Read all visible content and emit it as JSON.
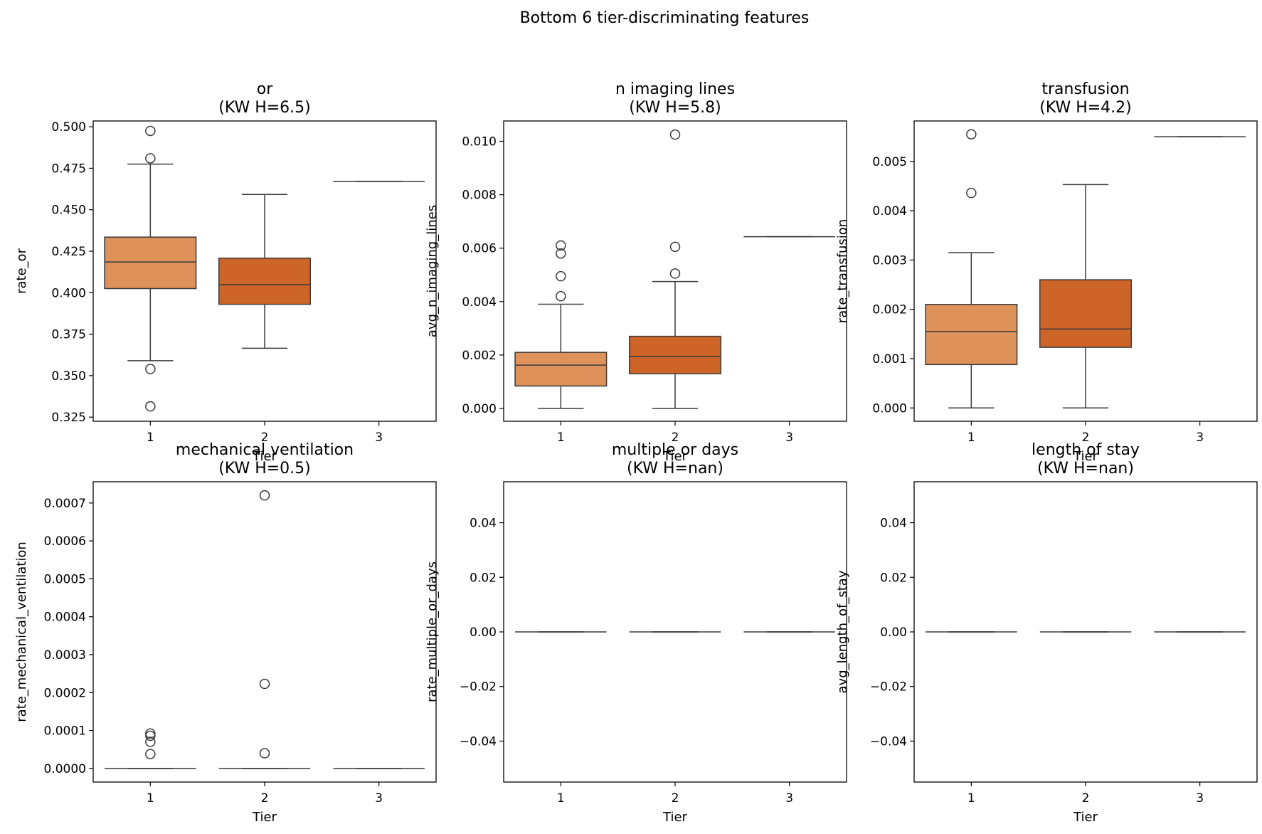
{
  "figure": {
    "suptitle": "Bottom 6 tier-discriminating features"
  },
  "chart_data": [
    {
      "type": "box",
      "title_line1": "or",
      "title_line2": "(KW H=6.5)",
      "xlabel": "Tier",
      "ylabel": "rate_or",
      "categories": [
        "1",
        "2",
        "3"
      ],
      "ylim": [
        0.3225,
        0.5035
      ],
      "yticks": [
        0.325,
        0.35,
        0.375,
        0.4,
        0.425,
        0.45,
        0.475,
        0.5
      ],
      "ytick_labels": [
        "0.325",
        "0.350",
        "0.375",
        "0.400",
        "0.425",
        "0.450",
        "0.475",
        "0.500"
      ],
      "boxes": [
        {
          "tier": "1",
          "q1": 0.4025,
          "median": 0.4185,
          "q3": 0.4335,
          "whislo": 0.359,
          "whishi": 0.4775,
          "fliers": [
            0.4975,
            0.481,
            0.354,
            0.3315
          ],
          "color": "#df915a"
        },
        {
          "tier": "2",
          "q1": 0.393,
          "median": 0.4048,
          "q3": 0.4208,
          "whislo": 0.3665,
          "whishi": 0.4592,
          "fliers": [],
          "color": "#cd6428"
        },
        {
          "tier": "3",
          "q1": 0.467,
          "median": 0.467,
          "q3": 0.467,
          "whislo": 0.467,
          "whishi": 0.467,
          "fliers": [],
          "color": "#cd6428"
        }
      ]
    },
    {
      "type": "box",
      "title_line1": "n imaging lines",
      "title_line2": "(KW H=5.8)",
      "xlabel": "Tier",
      "ylabel": "avg_n_imaging_lines",
      "categories": [
        "1",
        "2",
        "3"
      ],
      "ylim": [
        -0.00048,
        0.01076
      ],
      "yticks": [
        0,
        0.002,
        0.004,
        0.006,
        0.008,
        0.01
      ],
      "ytick_labels": [
        "0.000",
        "0.002",
        "0.004",
        "0.006",
        "0.008",
        "0.010"
      ],
      "boxes": [
        {
          "tier": "1",
          "q1": 0.00084,
          "median": 0.00162,
          "q3": 0.0021,
          "whislo": 0.0,
          "whishi": 0.0039,
          "fliers": [
            0.0061,
            0.0058,
            0.00495,
            0.0042
          ],
          "color": "#df915a"
        },
        {
          "tier": "2",
          "q1": 0.0013,
          "median": 0.00195,
          "q3": 0.0027,
          "whislo": 0.0,
          "whishi": 0.00475,
          "fliers": [
            0.01025,
            0.00605,
            0.00505
          ],
          "color": "#cd6428"
        },
        {
          "tier": "3",
          "q1": 0.00643,
          "median": 0.00643,
          "q3": 0.00643,
          "whislo": 0.00643,
          "whishi": 0.00643,
          "fliers": [],
          "color": "#cd6428"
        }
      ]
    },
    {
      "type": "box",
      "title_line1": "transfusion",
      "title_line2": "(KW H=4.2)",
      "xlabel": "Tier",
      "ylabel": "rate_transfusion",
      "categories": [
        "1",
        "2",
        "3"
      ],
      "ylim": [
        -0.00027,
        0.00582
      ],
      "yticks": [
        0,
        0.001,
        0.002,
        0.003,
        0.004,
        0.005
      ],
      "ytick_labels": [
        "0.000",
        "0.001",
        "0.002",
        "0.003",
        "0.004",
        "0.005"
      ],
      "boxes": [
        {
          "tier": "1",
          "q1": 0.00088,
          "median": 0.00155,
          "q3": 0.0021,
          "whislo": 0.0,
          "whishi": 0.00315,
          "fliers": [
            0.00555,
            0.00436
          ],
          "color": "#df915a"
        },
        {
          "tier": "2",
          "q1": 0.00123,
          "median": 0.0016,
          "q3": 0.0026,
          "whislo": 0.0,
          "whishi": 0.00453,
          "fliers": [],
          "color": "#cd6428"
        },
        {
          "tier": "3",
          "q1": 0.0055,
          "median": 0.0055,
          "q3": 0.0055,
          "whislo": 0.0055,
          "whishi": 0.0055,
          "fliers": [],
          "color": "#cd6428"
        }
      ]
    },
    {
      "type": "box",
      "title_line1": "mechanical ventilation",
      "title_line2": "(KW H=0.5)",
      "xlabel": "Tier",
      "ylabel": "rate_mechanical_ventilation",
      "categories": [
        "1",
        "2",
        "3"
      ],
      "ylim": [
        -3.6e-05,
        0.000756
      ],
      "yticks": [
        0,
        0.0001,
        0.0002,
        0.0003,
        0.0004,
        0.0005,
        0.0006,
        0.0007
      ],
      "ytick_labels": [
        "0.0000",
        "0.0001",
        "0.0002",
        "0.0003",
        "0.0004",
        "0.0005",
        "0.0006",
        "0.0007"
      ],
      "boxes": [
        {
          "tier": "1",
          "q1": 0.0,
          "median": 0.0,
          "q3": 0.0,
          "whislo": 0.0,
          "whishi": 0.0,
          "fliers": [
            9.2e-05,
            8.6e-05,
            7e-05,
            3.8e-05
          ],
          "color": "#df915a"
        },
        {
          "tier": "2",
          "q1": 0.0,
          "median": 0.0,
          "q3": 0.0,
          "whislo": 0.0,
          "whishi": 0.0,
          "fliers": [
            0.00072,
            0.000223,
            4e-05
          ],
          "color": "#cd6428"
        },
        {
          "tier": "3",
          "q1": 0.0,
          "median": 0.0,
          "q3": 0.0,
          "whislo": 0.0,
          "whishi": 0.0,
          "fliers": [],
          "color": "#cd6428"
        }
      ]
    },
    {
      "type": "box",
      "title_line1": "multiple or days",
      "title_line2": "(KW H=nan)",
      "xlabel": "Tier",
      "ylabel": "rate_multiple_or_days",
      "categories": [
        "1",
        "2",
        "3"
      ],
      "ylim": [
        -0.055,
        0.055
      ],
      "yticks": [
        -0.04,
        -0.02,
        0,
        0.02,
        0.04
      ],
      "ytick_labels": [
        "−0.04",
        "−0.02",
        "0.00",
        "0.02",
        "0.04"
      ],
      "boxes": [
        {
          "tier": "1",
          "q1": 0.0,
          "median": 0.0,
          "q3": 0.0,
          "whislo": 0.0,
          "whishi": 0.0,
          "fliers": [],
          "color": "#df915a"
        },
        {
          "tier": "2",
          "q1": 0.0,
          "median": 0.0,
          "q3": 0.0,
          "whislo": 0.0,
          "whishi": 0.0,
          "fliers": [],
          "color": "#cd6428"
        },
        {
          "tier": "3",
          "q1": 0.0,
          "median": 0.0,
          "q3": 0.0,
          "whislo": 0.0,
          "whishi": 0.0,
          "fliers": [],
          "color": "#cd6428"
        }
      ]
    },
    {
      "type": "box",
      "title_line1": "length of stay",
      "title_line2": "(KW H=nan)",
      "xlabel": "Tier",
      "ylabel": "avg_length_of_stay",
      "categories": [
        "1",
        "2",
        "3"
      ],
      "ylim": [
        -0.055,
        0.055
      ],
      "yticks": [
        -0.04,
        -0.02,
        0,
        0.02,
        0.04
      ],
      "ytick_labels": [
        "−0.04",
        "−0.02",
        "0.00",
        "0.02",
        "0.04"
      ],
      "boxes": [
        {
          "tier": "1",
          "q1": 0.0,
          "median": 0.0,
          "q3": 0.0,
          "whislo": 0.0,
          "whishi": 0.0,
          "fliers": [],
          "color": "#df915a"
        },
        {
          "tier": "2",
          "q1": 0.0,
          "median": 0.0,
          "q3": 0.0,
          "whislo": 0.0,
          "whishi": 0.0,
          "fliers": [],
          "color": "#cd6428"
        },
        {
          "tier": "3",
          "q1": 0.0,
          "median": 0.0,
          "q3": 0.0,
          "whislo": 0.0,
          "whishi": 0.0,
          "fliers": [],
          "color": "#cd6428"
        }
      ]
    }
  ]
}
